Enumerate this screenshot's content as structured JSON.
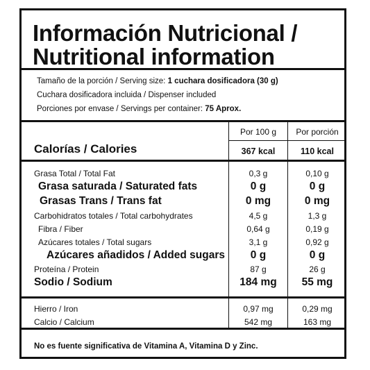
{
  "title": {
    "line1": "Información Nutricional /",
    "line2": "Nutritional information"
  },
  "serving": {
    "size_label": "Tamaño de la porción / Serving size: ",
    "size_value": "1 cuchara dosificadora (30 g)",
    "dispenser": "Cuchara dosificadora incluida / Dispenser included",
    "servings_label": "Porciones por envase / Servings per container: ",
    "servings_value": "75 Aprox."
  },
  "columns": {
    "per100": "Por 100 g",
    "perServing": "Por porción"
  },
  "calories": {
    "label": "Calorías / Calories",
    "per100": "367 kcal",
    "perServing": "110 kcal"
  },
  "nutrients": [
    {
      "label": "Grasa Total / Total Fat",
      "per100": "0,3 g",
      "perServing": "0,10 g"
    },
    {
      "label": "Grasa saturada / Saturated fats",
      "per100": "0 g",
      "perServing": "0 g"
    },
    {
      "label": "Grasas Trans / Trans fat",
      "per100": "0 mg",
      "perServing": "0 mg"
    },
    {
      "label": "Carbohidratos totales / Total carbohydrates",
      "per100": "4,5 g",
      "perServing": "1,3 g"
    },
    {
      "label": "Fibra / Fiber",
      "per100": "0,64 g",
      "perServing": "0,19 g"
    },
    {
      "label": "Azúcares totales / Total sugars",
      "per100": "3,1 g",
      "perServing": "0,92 g"
    },
    {
      "label": "Azúcares añadidos / Added sugars",
      "per100": "0 g",
      "perServing": "0 g"
    },
    {
      "label": "Proteína / Protein",
      "per100": "87 g",
      "perServing": "26 g"
    },
    {
      "label": "Sodio / Sodium",
      "per100": "184 mg",
      "perServing": "55 mg"
    }
  ],
  "minerals": [
    {
      "label": "Hierro / Iron",
      "per100": "0,97 mg",
      "perServing": "0,29 mg"
    },
    {
      "label": "Calcio / Calcium",
      "per100": "542 mg",
      "perServing": "163 mg"
    }
  ],
  "footnote": "No es fuente significativa de Vitamina A, Vitamina D y Zinc."
}
